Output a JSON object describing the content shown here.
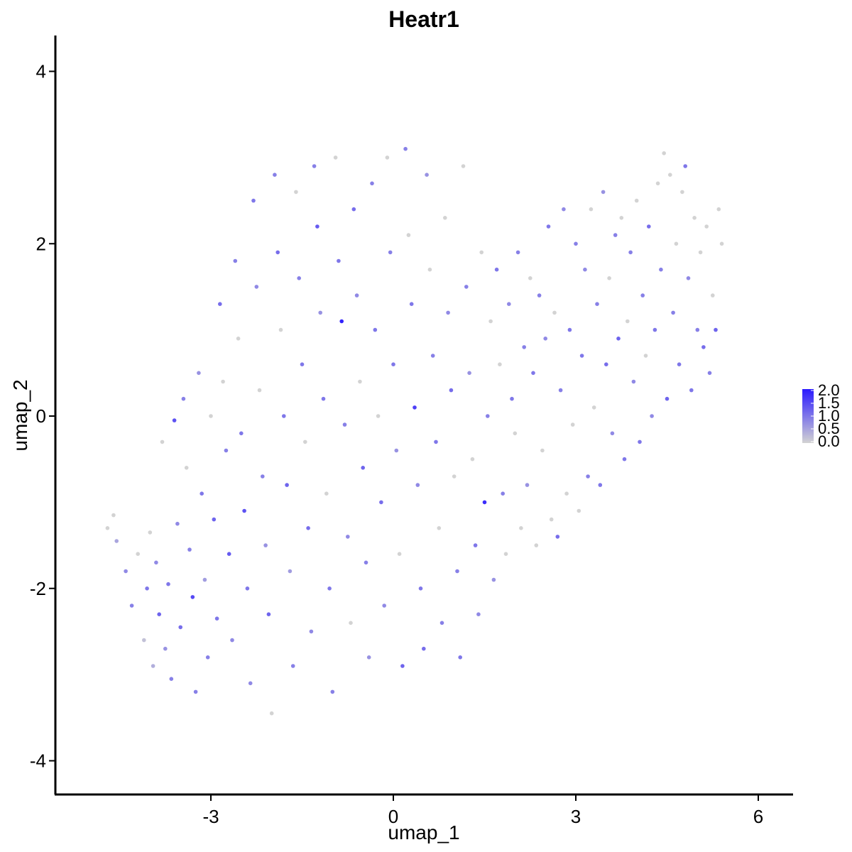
{
  "chart_data": {
    "type": "scatter",
    "title": "Heatr1",
    "xlabel": "umap_1",
    "ylabel": "umap_2",
    "xlim": [
      -5.3,
      6.5
    ],
    "ylim": [
      -4.3,
      4.4
    ],
    "x_ticks": [
      -3,
      0,
      3,
      6
    ],
    "y_ticks": [
      -4,
      -2,
      0,
      2,
      4
    ],
    "x_tick_labels": [
      "-3",
      "0",
      "3",
      "6"
    ],
    "y_tick_labels": [
      "-4",
      "-2",
      "0",
      "2",
      "4"
    ],
    "grid": false,
    "legend": {
      "placement": "right",
      "type": "colorbar",
      "min": 0.0,
      "max": 2.0,
      "labels": [
        "2.0",
        "1.5",
        "1.0",
        "0.5",
        "0.0"
      ],
      "low_color": "#d3d3d3",
      "high_color": "#2b1aff"
    },
    "points": [
      [
        -4.7,
        -1.3,
        0.0
      ],
      [
        -4.6,
        -1.15,
        0.0
      ],
      [
        -4.55,
        -1.45,
        0.5
      ],
      [
        -4.4,
        -1.8,
        0.8
      ],
      [
        -4.3,
        -2.2,
        0.9
      ],
      [
        -4.2,
        -1.6,
        0.0
      ],
      [
        -4.1,
        -2.6,
        0.2
      ],
      [
        -4.05,
        -2.0,
        1.0
      ],
      [
        -4.0,
        -1.35,
        0.0
      ],
      [
        -3.95,
        -2.9,
        0.4
      ],
      [
        -3.9,
        -1.7,
        0.8
      ],
      [
        -3.85,
        -2.3,
        1.2
      ],
      [
        -3.8,
        -0.3,
        0.0
      ],
      [
        -3.75,
        -2.7,
        0.7
      ],
      [
        -3.7,
        -1.95,
        1.0
      ],
      [
        -3.65,
        -3.05,
        0.9
      ],
      [
        -3.6,
        -0.05,
        1.4
      ],
      [
        -3.55,
        -1.25,
        0.8
      ],
      [
        -3.5,
        -2.45,
        1.1
      ],
      [
        -3.45,
        0.2,
        0.9
      ],
      [
        -3.4,
        -0.6,
        0.0
      ],
      [
        -3.35,
        -1.55,
        0.9
      ],
      [
        -3.3,
        -2.1,
        1.5
      ],
      [
        -3.25,
        -3.2,
        0.9
      ],
      [
        -3.2,
        0.5,
        0.7
      ],
      [
        -3.15,
        -0.9,
        1.0
      ],
      [
        -3.1,
        -1.9,
        0.6
      ],
      [
        -3.05,
        -2.8,
        0.9
      ],
      [
        -3.0,
        0.0,
        0.0
      ],
      [
        -2.95,
        -1.2,
        1.2
      ],
      [
        -2.9,
        -2.35,
        1.0
      ],
      [
        -2.85,
        1.3,
        1.1
      ],
      [
        -2.8,
        0.4,
        0.0
      ],
      [
        -2.75,
        -0.4,
        0.9
      ],
      [
        -2.7,
        -1.6,
        1.3
      ],
      [
        -2.65,
        -2.6,
        0.8
      ],
      [
        -2.6,
        1.8,
        0.9
      ],
      [
        -2.55,
        0.9,
        0.0
      ],
      [
        -2.5,
        -0.2,
        1.0
      ],
      [
        -2.45,
        -1.1,
        1.4
      ],
      [
        -2.4,
        -2.0,
        1.0
      ],
      [
        -2.35,
        -3.1,
        0.8
      ],
      [
        -2.3,
        2.5,
        1.0
      ],
      [
        -2.25,
        1.5,
        0.8
      ],
      [
        -2.2,
        0.3,
        0.0
      ],
      [
        -2.15,
        -0.7,
        0.9
      ],
      [
        -2.1,
        -1.5,
        0.7
      ],
      [
        -2.05,
        -2.3,
        1.2
      ],
      [
        -2.0,
        -3.45,
        0.0
      ],
      [
        -1.95,
        2.8,
        0.9
      ],
      [
        -1.9,
        1.9,
        1.1
      ],
      [
        -1.85,
        1.0,
        0.0
      ],
      [
        -1.8,
        0.0,
        1.0
      ],
      [
        -1.75,
        -0.8,
        1.2
      ],
      [
        -1.7,
        -1.8,
        0.6
      ],
      [
        -1.65,
        -2.9,
        0.9
      ],
      [
        -1.6,
        2.6,
        0.0
      ],
      [
        -1.55,
        1.6,
        0.9
      ],
      [
        -1.5,
        0.6,
        1.0
      ],
      [
        -1.45,
        -0.3,
        0.0
      ],
      [
        -1.4,
        -1.3,
        1.1
      ],
      [
        -1.35,
        -2.5,
        0.8
      ],
      [
        -1.3,
        2.9,
        0.9
      ],
      [
        -1.25,
        2.2,
        1.3
      ],
      [
        -1.2,
        1.2,
        0.7
      ],
      [
        -1.15,
        0.2,
        1.0
      ],
      [
        -1.1,
        -0.9,
        0.0
      ],
      [
        -1.05,
        -2.0,
        1.0
      ],
      [
        -1.0,
        -3.2,
        0.9
      ],
      [
        -0.95,
        3.0,
        0.0
      ],
      [
        -0.9,
        1.8,
        1.0
      ],
      [
        -0.85,
        1.1,
        1.9
      ],
      [
        -0.8,
        -0.1,
        0.9
      ],
      [
        -0.75,
        -1.4,
        0.8
      ],
      [
        -0.7,
        -2.4,
        0.0
      ],
      [
        -0.65,
        2.4,
        1.1
      ],
      [
        -0.6,
        1.4,
        0.8
      ],
      [
        -0.55,
        0.4,
        0.0
      ],
      [
        -0.5,
        -0.6,
        1.2
      ],
      [
        -0.45,
        -1.7,
        0.9
      ],
      [
        -0.4,
        -2.8,
        0.7
      ],
      [
        -0.35,
        2.7,
        0.9
      ],
      [
        -0.3,
        1.0,
        1.0
      ],
      [
        -0.25,
        0.0,
        0.0
      ],
      [
        -0.2,
        -1.0,
        1.1
      ],
      [
        -0.15,
        -2.2,
        0.8
      ],
      [
        -0.1,
        3.0,
        0.0
      ],
      [
        -0.05,
        1.9,
        0.9
      ],
      [
        0.0,
        0.6,
        1.0
      ],
      [
        0.05,
        -0.4,
        0.7
      ],
      [
        0.1,
        -1.6,
        0.0
      ],
      [
        0.15,
        -2.9,
        1.2
      ],
      [
        0.2,
        3.1,
        0.9
      ],
      [
        0.25,
        2.1,
        0.0
      ],
      [
        0.3,
        1.3,
        1.0
      ],
      [
        0.35,
        0.1,
        1.6
      ],
      [
        0.4,
        -0.8,
        0.8
      ],
      [
        0.45,
        -2.0,
        1.0
      ],
      [
        0.5,
        -2.7,
        1.1
      ],
      [
        0.55,
        2.8,
        0.7
      ],
      [
        0.6,
        1.7,
        0.0
      ],
      [
        0.65,
        0.7,
        0.9
      ],
      [
        0.7,
        -0.3,
        1.0
      ],
      [
        0.75,
        -1.3,
        0.0
      ],
      [
        0.8,
        -2.4,
        0.9
      ],
      [
        0.85,
        2.3,
        0.0
      ],
      [
        0.9,
        1.2,
        0.8
      ],
      [
        0.95,
        0.3,
        1.1
      ],
      [
        1.0,
        -0.7,
        0.0
      ],
      [
        1.05,
        -1.8,
        0.9
      ],
      [
        1.1,
        -2.8,
        1.0
      ],
      [
        1.15,
        2.9,
        0.0
      ],
      [
        1.2,
        1.5,
        0.9
      ],
      [
        1.25,
        0.5,
        0.7
      ],
      [
        1.3,
        -0.5,
        0.0
      ],
      [
        1.35,
        -1.5,
        1.0
      ],
      [
        1.4,
        -2.3,
        0.8
      ],
      [
        1.45,
        1.9,
        0.0
      ],
      [
        1.5,
        -1.0,
        1.8
      ],
      [
        1.55,
        0.0,
        0.9
      ],
      [
        1.6,
        1.1,
        0.0
      ],
      [
        1.65,
        -1.9,
        0.7
      ],
      [
        1.7,
        1.7,
        1.0
      ],
      [
        1.75,
        0.6,
        0.0
      ],
      [
        1.8,
        -0.9,
        0.9
      ],
      [
        1.85,
        -1.6,
        0.0
      ],
      [
        1.9,
        1.3,
        0.8
      ],
      [
        1.95,
        0.2,
        1.0
      ],
      [
        2.0,
        -0.2,
        0.0
      ],
      [
        2.05,
        1.9,
        0.9
      ],
      [
        2.1,
        -1.3,
        0.0
      ],
      [
        2.15,
        0.8,
        0.9
      ],
      [
        2.2,
        -0.8,
        0.7
      ],
      [
        2.25,
        1.6,
        0.0
      ],
      [
        2.3,
        0.5,
        1.0
      ],
      [
        2.35,
        -1.5,
        0.0
      ],
      [
        2.4,
        1.4,
        0.9
      ],
      [
        2.45,
        -0.4,
        0.0
      ],
      [
        2.5,
        0.9,
        0.8
      ],
      [
        2.55,
        2.2,
        1.0
      ],
      [
        2.6,
        -1.2,
        0.0
      ],
      [
        2.65,
        1.2,
        0.0
      ],
      [
        2.7,
        -1.4,
        1.1
      ],
      [
        2.75,
        0.3,
        0.9
      ],
      [
        2.8,
        2.4,
        0.8
      ],
      [
        2.85,
        -0.9,
        0.0
      ],
      [
        2.9,
        1.0,
        1.0
      ],
      [
        2.95,
        -0.1,
        0.0
      ],
      [
        3.0,
        2.0,
        0.9
      ],
      [
        3.05,
        -1.1,
        0.0
      ],
      [
        3.1,
        0.7,
        1.0
      ],
      [
        3.15,
        1.7,
        0.8
      ],
      [
        3.2,
        -0.7,
        0.9
      ],
      [
        3.25,
        2.4,
        0.0
      ],
      [
        3.3,
        0.1,
        0.0
      ],
      [
        3.35,
        1.3,
        0.9
      ],
      [
        3.4,
        -0.8,
        1.0
      ],
      [
        3.45,
        2.6,
        0.7
      ],
      [
        3.5,
        0.6,
        1.1
      ],
      [
        3.55,
        1.6,
        0.0
      ],
      [
        3.6,
        -0.2,
        0.8
      ],
      [
        3.65,
        2.1,
        0.9
      ],
      [
        3.7,
        0.9,
        1.2
      ],
      [
        3.75,
        2.3,
        0.0
      ],
      [
        3.8,
        -0.5,
        1.0
      ],
      [
        3.85,
        1.1,
        0.0
      ],
      [
        3.9,
        1.9,
        0.9
      ],
      [
        3.95,
        0.4,
        0.8
      ],
      [
        4.0,
        2.5,
        0.0
      ],
      [
        4.05,
        -0.3,
        1.0
      ],
      [
        4.1,
        1.4,
        0.9
      ],
      [
        4.15,
        0.7,
        0.0
      ],
      [
        4.2,
        2.2,
        1.1
      ],
      [
        4.25,
        0.0,
        0.8
      ],
      [
        4.3,
        1.0,
        1.0
      ],
      [
        4.35,
        2.7,
        0.0
      ],
      [
        4.4,
        1.7,
        0.9
      ],
      [
        4.45,
        3.05,
        0.0
      ],
      [
        4.5,
        0.2,
        1.2
      ],
      [
        4.55,
        2.8,
        0.0
      ],
      [
        4.6,
        1.2,
        0.9
      ],
      [
        4.65,
        2.0,
        0.0
      ],
      [
        4.7,
        0.6,
        1.0
      ],
      [
        4.75,
        2.6,
        0.0
      ],
      [
        4.8,
        2.9,
        1.0
      ],
      [
        4.85,
        1.6,
        0.8
      ],
      [
        4.9,
        0.3,
        1.0
      ],
      [
        4.95,
        2.3,
        0.0
      ],
      [
        5.0,
        1.0,
        0.9
      ],
      [
        5.05,
        1.9,
        0.0
      ],
      [
        5.1,
        0.8,
        1.1
      ],
      [
        5.15,
        2.2,
        0.0
      ],
      [
        5.2,
        0.5,
        0.9
      ],
      [
        5.25,
        1.4,
        0.0
      ],
      [
        5.3,
        1.0,
        1.2
      ],
      [
        5.35,
        2.4,
        0.0
      ],
      [
        5.4,
        2.0,
        0.0
      ]
    ]
  }
}
